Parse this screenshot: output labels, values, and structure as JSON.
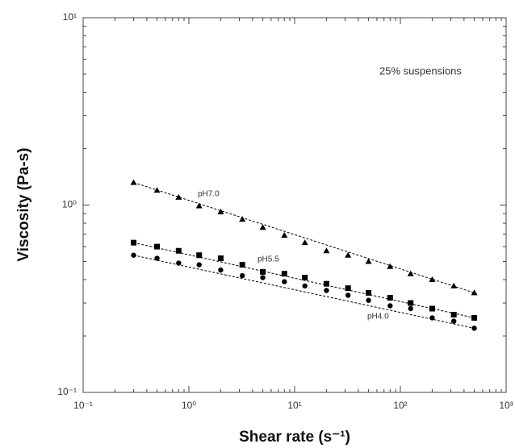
{
  "chart_data": {
    "type": "scatter",
    "xlabel": "Shear rate (s⁻¹)",
    "ylabel": "Viscosity (Pa-s)",
    "annotation": "25% suspensions",
    "xscale": "log",
    "yscale": "log",
    "xlim": [
      0.1,
      1000
    ],
    "ylim": [
      0.1,
      10
    ],
    "xticks": [
      {
        "value": 0.1,
        "label": "10⁻¹"
      },
      {
        "value": 1,
        "label": "10⁰"
      },
      {
        "value": 10,
        "label": "10¹"
      },
      {
        "value": 100,
        "label": "10²"
      },
      {
        "value": 1000,
        "label": "10³"
      }
    ],
    "yticks": [
      {
        "value": 0.1,
        "label": "10⁻¹"
      },
      {
        "value": 1,
        "label": "10⁰"
      },
      {
        "value": 10,
        "label": "10¹"
      }
    ],
    "x": [
      0.3,
      0.5,
      0.8,
      1.25,
      2,
      3.2,
      5,
      8,
      12.5,
      20,
      32,
      50,
      80,
      125,
      200,
      320,
      500
    ],
    "series": [
      {
        "name": "pH7.0",
        "color": "#000000",
        "marker": "triangle",
        "values": [
          1.32,
          1.2,
          1.1,
          0.99,
          0.92,
          0.84,
          0.76,
          0.69,
          0.63,
          0.57,
          0.54,
          0.5,
          0.47,
          0.43,
          0.4,
          0.37,
          0.34
        ]
      },
      {
        "name": "pH5.5",
        "color": "#000000",
        "marker": "square",
        "values": [
          0.63,
          0.6,
          0.57,
          0.54,
          0.52,
          0.48,
          0.44,
          0.43,
          0.41,
          0.38,
          0.36,
          0.34,
          0.32,
          0.3,
          0.28,
          0.26,
          0.25
        ]
      },
      {
        "name": "pH4.0",
        "color": "#000000",
        "marker": "circle",
        "values": [
          0.54,
          0.52,
          0.49,
          0.48,
          0.45,
          0.42,
          0.41,
          0.39,
          0.37,
          0.35,
          0.33,
          0.31,
          0.29,
          0.28,
          0.25,
          0.24,
          0.22
        ]
      }
    ]
  }
}
